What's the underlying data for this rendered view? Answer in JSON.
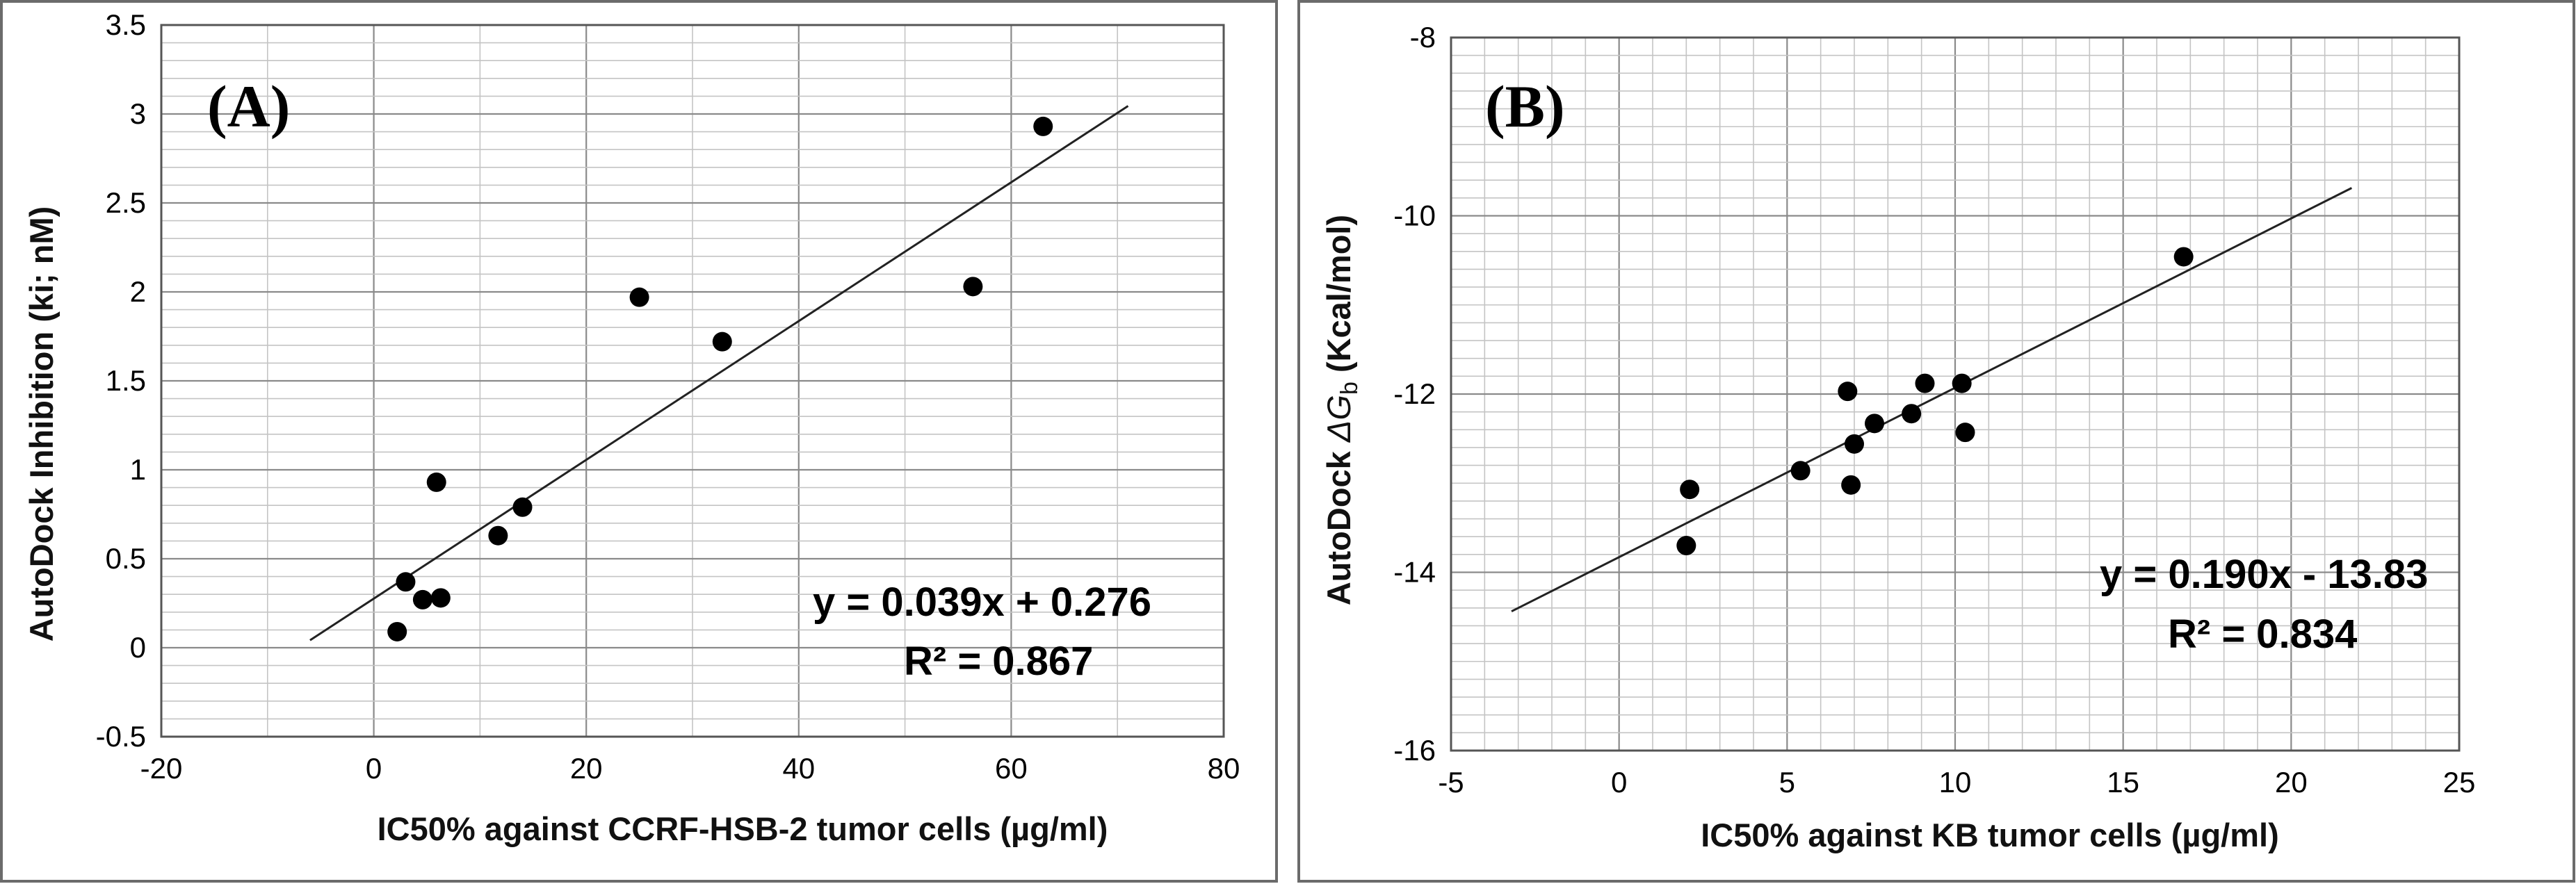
{
  "chart_data": [
    {
      "type": "scatter",
      "panel_label": "(A)",
      "xlabel": "IC50% against CCRF-HSB-2 tumor cells (µg/ml)",
      "ylabel": "AutoDock Inhibition (ki; nM)",
      "xlim": [
        -20,
        80
      ],
      "ylim": [
        -0.5,
        3.5
      ],
      "x_ticks": [
        -20,
        0,
        20,
        40,
        60,
        80
      ],
      "x_tick_labels": [
        "-20",
        "0",
        "20",
        "40",
        "60",
        "80"
      ],
      "y_ticks": [
        -0.5,
        0,
        0.5,
        1,
        1.5,
        2,
        2.5,
        3,
        3.5
      ],
      "y_tick_labels": [
        "-0.5",
        "0",
        "0.5",
        "1",
        "1.5",
        "2",
        "2.5",
        "3",
        "3.5"
      ],
      "x_minor_step": 10,
      "y_minor_step": 0.1,
      "series": [
        {
          "name": "compounds",
          "points": [
            [
              2.2,
              0.09
            ],
            [
              3.0,
              0.37
            ],
            [
              4.6,
              0.27
            ],
            [
              6.3,
              0.28
            ],
            [
              5.9,
              0.93
            ],
            [
              11.7,
              0.63
            ],
            [
              14.0,
              0.79
            ],
            [
              25.0,
              1.97
            ],
            [
              32.8,
              1.72
            ],
            [
              56.4,
              2.03
            ],
            [
              63.0,
              2.93
            ]
          ]
        }
      ],
      "trendline": {
        "slope": 0.039,
        "intercept": 0.276,
        "x_range": [
          -6,
          71
        ]
      },
      "equation": "y = 0.039x + 0.276",
      "r2": "R² = 0.867"
    },
    {
      "type": "scatter",
      "panel_label": "(B)",
      "xlabel": "IC50% against KB tumor cells (µg/ml)",
      "ylabel_prefix": "AutoDock ",
      "ylabel_symbol": "ΔG",
      "ylabel_subscript": "b",
      "ylabel_suffix": " (Kcal/mol)",
      "xlim": [
        -5,
        25
      ],
      "ylim": [
        -16,
        -8
      ],
      "x_ticks": [
        -5,
        0,
        5,
        10,
        15,
        20,
        25
      ],
      "x_tick_labels": [
        "-5",
        "0",
        "5",
        "10",
        "15",
        "20",
        "25"
      ],
      "y_ticks": [
        -16,
        -14,
        -12,
        -10,
        -8
      ],
      "y_tick_labels": [
        "-16",
        "-14",
        "-12",
        "-10",
        "-8"
      ],
      "x_minor_step": 1,
      "y_minor_step": 0.2,
      "series": [
        {
          "name": "compounds",
          "points": [
            [
              2.0,
              -13.7
            ],
            [
              2.1,
              -13.07
            ],
            [
              5.4,
              -12.86
            ],
            [
              6.8,
              -11.97
            ],
            [
              6.9,
              -13.02
            ],
            [
              7.0,
              -12.56
            ],
            [
              7.6,
              -12.33
            ],
            [
              8.7,
              -12.22
            ],
            [
              9.1,
              -11.88
            ],
            [
              10.2,
              -11.88
            ],
            [
              10.3,
              -12.43
            ],
            [
              16.8,
              -10.46
            ]
          ]
        }
      ],
      "trendline": {
        "slope": 0.19,
        "intercept": -13.83,
        "x_range": [
          -3.2,
          21.8
        ]
      },
      "equation": "y = 0.190x - 13.83",
      "r2": "R² = 0.834"
    }
  ]
}
